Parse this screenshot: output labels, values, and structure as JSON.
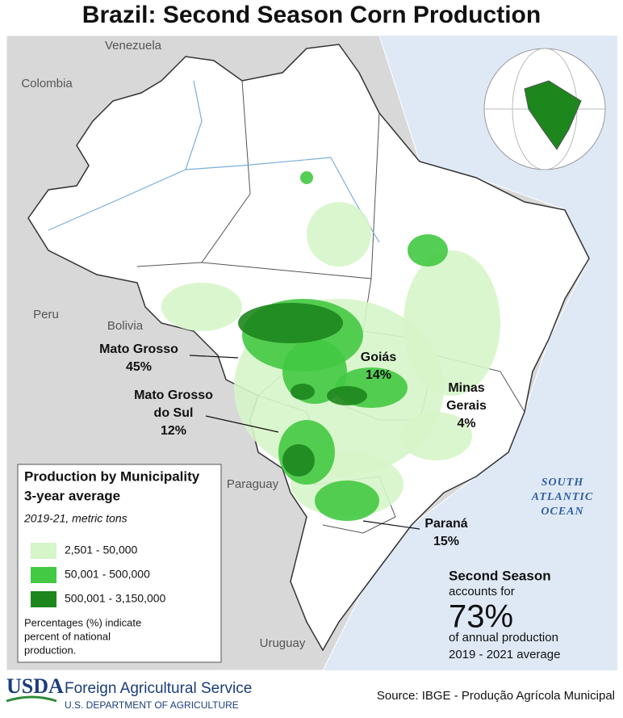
{
  "title": "Brazil: Second Season Corn Production",
  "countries": [
    "Venezuela",
    "Colombia",
    "Peru",
    "Bolivia",
    "Paraguay",
    "Uruguay"
  ],
  "ocean": [
    "SOUTH",
    "ATLANTIC",
    "OCEAN"
  ],
  "states": [
    {
      "name": [
        "Mato Grosso"
      ],
      "share": "45%"
    },
    {
      "name": [
        "Goiás"
      ],
      "share": "14%"
    },
    {
      "name": [
        "Minas",
        "Gerais"
      ],
      "share": "4%"
    },
    {
      "name": [
        "Mato Grosso",
        "do Sul"
      ],
      "share": "12%"
    },
    {
      "name": [
        "Paraná"
      ],
      "share": "15%"
    }
  ],
  "legend": {
    "title": [
      "Production by Municipality",
      "3-year average"
    ],
    "subtitle": "2019-21, metric tons",
    "items": [
      {
        "label": "2,501 - 50,000",
        "color": "#d6f5c9"
      },
      {
        "label": "50,001 - 500,000",
        "color": "#43c943"
      },
      {
        "label": "500,001 - 3,150,000",
        "color": "#1d861d"
      }
    ],
    "note": [
      "Percentages (%) indicate",
      "percent of national",
      "production."
    ]
  },
  "summary": {
    "heading": "Second Season",
    "line1": "accounts for",
    "big": "73%",
    "line2": "of annual production",
    "line3": "2019 - 2021 average"
  },
  "footer": {
    "logo": "USDA",
    "agency": "Foreign Agricultural Service",
    "department": "U.S. DEPARTMENT OF AGRICULTURE",
    "source": "Source: IBGE - Produção Agrícola Municipal"
  }
}
